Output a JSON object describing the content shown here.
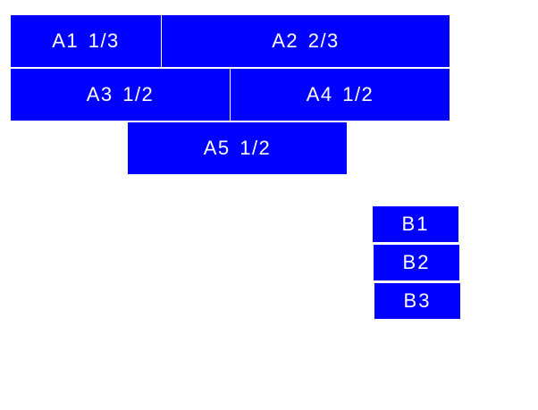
{
  "row_a": {
    "a1": "A1 1/3",
    "a2": "A2 2/3",
    "a3": "A3 1/2",
    "a4": "A4 1/2",
    "a5": "A5 1/2"
  },
  "row_b": {
    "b1": "B1",
    "b2": "B2",
    "b3": "B3"
  },
  "colors": {
    "box": "#0000ff",
    "text": "#ffffff",
    "background": "#ffffff"
  }
}
